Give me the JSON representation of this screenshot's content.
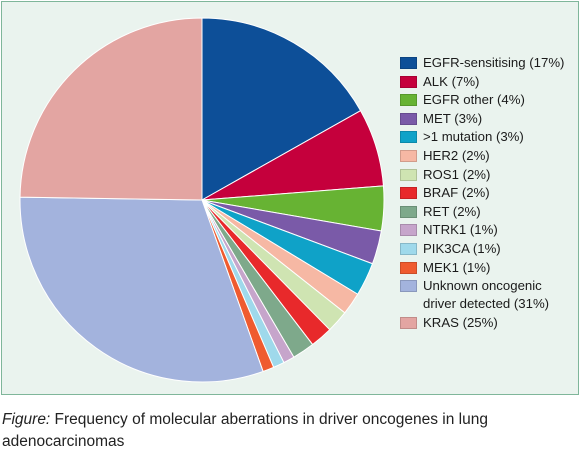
{
  "chart_data": {
    "type": "pie",
    "start_angle_deg": 0,
    "direction": "clockwise",
    "series": [
      {
        "label": "EGFR-sensitising (17%)",
        "value": 17,
        "color": "#0d4f98"
      },
      {
        "label": "ALK (7%)",
        "value": 7,
        "color": "#c5003c"
      },
      {
        "label": "EGFR other (4%)",
        "value": 4,
        "color": "#67b333"
      },
      {
        "label": "MET (3%)",
        "value": 3,
        "color": "#7a5aa8"
      },
      {
        "label": ">1 mutation (3%)",
        "value": 3,
        "color": "#0fa2c8"
      },
      {
        "label": "HER2 (2%)",
        "value": 2,
        "color": "#f6b8a4"
      },
      {
        "label": "ROS1 (2%)",
        "value": 2,
        "color": "#cfe4b2"
      },
      {
        "label": "BRAF (2%)",
        "value": 2,
        "color": "#e8292b"
      },
      {
        "label": "RET (2%)",
        "value": 2,
        "color": "#7ea98b"
      },
      {
        "label": "NTRK1 (1%)",
        "value": 1,
        "color": "#c6a5cb"
      },
      {
        "label": "PIK3CA (1%)",
        "value": 1,
        "color": "#9fd9eb"
      },
      {
        "label": "MEK1 (1%)",
        "value": 1,
        "color": "#ef5b2f"
      },
      {
        "label": "Unknown oncogenic driver detected (31%)",
        "value": 31,
        "color": "#a3b3dd"
      },
      {
        "label": "KRAS (25%)",
        "value": 25,
        "color": "#e3a5a2"
      }
    ],
    "legend_position": "right"
  },
  "caption": {
    "prefix": "Figure:",
    "text": " Frequency of molecular aberrations in driver oncogenes in lung adenocarcinomas"
  }
}
